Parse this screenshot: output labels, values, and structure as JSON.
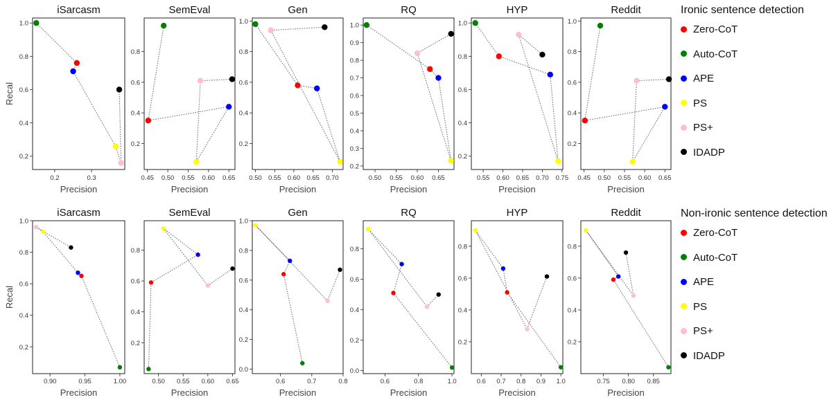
{
  "chart_data": {
    "type": "scatter",
    "series_order": [
      "Zero-CoT",
      "Auto-CoT",
      "APE",
      "PS",
      "PS+",
      "IDADP"
    ],
    "colors": {
      "Zero-CoT": "#ff0000",
      "Auto-CoT": "#008000",
      "APE": "#0000ff",
      "PS": "#ffff00",
      "PS+": "#ffc0cb",
      "IDADP": "#000000"
    },
    "xlabel": "Precision",
    "ylabel": "Recal",
    "groups": [
      {
        "legend_title": "Ironic sentence detection",
        "point_size": "large",
        "panels": [
          {
            "title": "iSarcasm",
            "xlim": [
              0.14,
              0.39
            ],
            "ylim": [
              0.12,
              1.03
            ],
            "xticks": [
              0.2,
              0.3
            ],
            "yticks": [
              0.2,
              0.4,
              0.6,
              0.8,
              1.0
            ],
            "xtick_labels": [
              "0.2",
              "0.3"
            ],
            "ytick_labels": [
              "0.2",
              "0.4",
              "0.6",
              "0.8",
              "1.0"
            ],
            "points": {
              "Zero-CoT": [
                0.26,
                0.76
              ],
              "Auto-CoT": [
                0.15,
                1.0
              ],
              "APE": [
                0.25,
                0.71
              ],
              "PS": [
                0.365,
                0.26
              ],
              "PS+": [
                0.38,
                0.16
              ],
              "IDADP": [
                0.375,
                0.6
              ]
            }
          },
          {
            "title": "SemEval",
            "xlim": [
              0.442,
              0.665
            ],
            "ylim": [
              0.03,
              1.02
            ],
            "xticks": [
              0.45,
              0.5,
              0.55,
              0.6,
              0.65
            ],
            "yticks": [
              0.2,
              0.4,
              0.6,
              0.8
            ],
            "xtick_labels": [
              "0.45",
              "0.50",
              "0.55",
              "0.60",
              "0.65"
            ],
            "ytick_labels": [
              "0.2",
              "0.4",
              "0.6",
              "0.8"
            ],
            "points": {
              "Zero-CoT": [
                0.452,
                0.35
              ],
              "Auto-CoT": [
                0.49,
                0.97
              ],
              "APE": [
                0.65,
                0.44
              ],
              "PS": [
                0.57,
                0.08
              ],
              "PS+": [
                0.58,
                0.61
              ],
              "IDADP": [
                0.658,
                0.62
              ]
            }
          },
          {
            "title": "Gen",
            "xlim": [
              0.492,
              0.728
            ],
            "ylim": [
              0.03,
              1.02
            ],
            "xticks": [
              0.5,
              0.55,
              0.6,
              0.65,
              0.7
            ],
            "yticks": [
              0.2,
              0.4,
              0.6,
              0.8,
              1.0
            ],
            "xtick_labels": [
              "0.50",
              "0.55",
              "0.60",
              "0.65",
              "0.70"
            ],
            "ytick_labels": [
              "0.2",
              "0.4",
              "0.6",
              "0.8",
              "1.0"
            ],
            "points": {
              "Zero-CoT": [
                0.61,
                0.58
              ],
              "Auto-CoT": [
                0.5,
                0.98
              ],
              "APE": [
                0.66,
                0.56
              ],
              "PS": [
                0.72,
                0.08
              ],
              "PS+": [
                0.54,
                0.94
              ],
              "IDADP": [
                0.68,
                0.96
              ]
            }
          },
          {
            "title": "RQ",
            "xlim": [
              0.472,
              0.687
            ],
            "ylim": [
              0.18,
              1.04
            ],
            "xticks": [
              0.5,
              0.55,
              0.6,
              0.65
            ],
            "yticks": [
              0.2,
              0.3,
              0.4,
              0.5,
              0.6,
              0.7,
              0.8,
              0.9,
              1.0
            ],
            "xtick_labels": [
              "0.50",
              "0.55",
              "0.60",
              "0.65"
            ],
            "ytick_labels": [
              "0.2",
              "0.3",
              "0.4",
              "0.5",
              "0.6",
              "0.7",
              "0.8",
              "0.9",
              "1.0"
            ],
            "points": {
              "Zero-CoT": [
                0.63,
                0.75
              ],
              "Auto-CoT": [
                0.48,
                1.0
              ],
              "APE": [
                0.65,
                0.7
              ],
              "PS": [
                0.68,
                0.23
              ],
              "PS+": [
                0.6,
                0.84
              ],
              "IDADP": [
                0.68,
                0.95
              ]
            }
          },
          {
            "title": "HYP",
            "xlim": [
              0.52,
              0.752
            ],
            "ylim": [
              0.12,
              1.03
            ],
            "xticks": [
              0.55,
              0.6,
              0.65,
              0.7,
              0.75
            ],
            "yticks": [
              0.2,
              0.4,
              0.6,
              0.8,
              1.0
            ],
            "xtick_labels": [
              "0.55",
              "0.60",
              "0.65",
              "0.70",
              "0.75"
            ],
            "ytick_labels": [
              "0.2",
              "0.4",
              "0.6",
              "0.8",
              "1.0"
            ],
            "points": {
              "Zero-CoT": [
                0.59,
                0.8
              ],
              "Auto-CoT": [
                0.53,
                1.0
              ],
              "APE": [
                0.72,
                0.69
              ],
              "PS": [
                0.74,
                0.17
              ],
              "PS+": [
                0.64,
                0.93
              ],
              "IDADP": [
                0.7,
                0.81
              ]
            }
          },
          {
            "title": "Reddit",
            "xlim": [
              0.442,
              0.665
            ],
            "ylim": [
              0.03,
              1.02
            ],
            "xticks": [
              0.45,
              0.5,
              0.55,
              0.6,
              0.65
            ],
            "yticks": [
              0.2,
              0.4,
              0.6,
              0.8,
              1.0
            ],
            "xtick_labels": [
              "0.45",
              "0.50",
              "0.55",
              "0.60",
              "0.65"
            ],
            "ytick_labels": [
              "0.2",
              "0.4",
              "0.6",
              "0.8",
              "1.0"
            ],
            "points": {
              "Zero-CoT": [
                0.452,
                0.35
              ],
              "Auto-CoT": [
                0.49,
                0.97
              ],
              "APE": [
                0.65,
                0.44
              ],
              "PS": [
                0.57,
                0.08
              ],
              "PS+": [
                0.58,
                0.61
              ],
              "IDADP": [
                0.66,
                0.62
              ]
            }
          }
        ]
      },
      {
        "legend_title": "Non-ironic sentence detection",
        "point_size": "small",
        "panels": [
          {
            "title": "iSarcasm",
            "xlim": [
              0.875,
              1.007
            ],
            "ylim": [
              0.03,
              1.0
            ],
            "xticks": [
              0.9,
              0.95,
              1.0
            ],
            "yticks": [
              0.2,
              0.4,
              0.6,
              0.8,
              1.0
            ],
            "xtick_labels": [
              "0.90",
              "0.95",
              "1.00"
            ],
            "ytick_labels": [
              "0.2",
              "0.4",
              "0.6",
              "0.8",
              "1.0"
            ],
            "points": {
              "Zero-CoT": [
                0.945,
                0.65
              ],
              "Auto-CoT": [
                1.0,
                0.07
              ],
              "APE": [
                0.94,
                0.67
              ],
              "PS": [
                0.89,
                0.93
              ],
              "PS+": [
                0.88,
                0.96
              ],
              "IDADP": [
                0.93,
                0.83
              ]
            }
          },
          {
            "title": "SemEval",
            "xlim": [
              0.471,
              0.655
            ],
            "ylim": [
              0.0,
              0.99
            ],
            "xticks": [
              0.5,
              0.55,
              0.6,
              0.65
            ],
            "yticks": [
              0.2,
              0.4,
              0.6,
              0.8
            ],
            "xtick_labels": [
              "0.50",
              "0.55",
              "0.60",
              "0.65"
            ],
            "ytick_labels": [
              "0.2",
              "0.4",
              "0.6",
              "0.8"
            ],
            "points": {
              "Zero-CoT": [
                0.485,
                0.59
              ],
              "Auto-CoT": [
                0.48,
                0.03
              ],
              "APE": [
                0.58,
                0.77
              ],
              "PS": [
                0.51,
                0.94
              ],
              "PS+": [
                0.6,
                0.57
              ],
              "IDADP": [
                0.65,
                0.68
              ]
            }
          },
          {
            "title": "Gen",
            "xlim": [
              0.51,
              0.8
            ],
            "ylim": [
              -0.03,
              1.0
            ],
            "xticks": [
              0.6,
              0.7,
              0.8
            ],
            "yticks": [
              0.0,
              0.2,
              0.4,
              0.6,
              0.8,
              1.0
            ],
            "xtick_labels": [
              "0.6",
              "0.7",
              "0.8"
            ],
            "ytick_labels": [
              "0.0",
              "0.2",
              "0.4",
              "0.6",
              "0.8",
              "1.0"
            ],
            "points": {
              "Zero-CoT": [
                0.61,
                0.64
              ],
              "Auto-CoT": [
                0.67,
                0.04
              ],
              "APE": [
                0.63,
                0.73
              ],
              "PS": [
                0.52,
                0.97
              ],
              "PS+": [
                0.75,
                0.46
              ],
              "IDADP": [
                0.79,
                0.67
              ]
            }
          },
          {
            "title": "RQ",
            "xlim": [
              0.47,
              1.012
            ],
            "ylim": [
              -0.02,
              0.985
            ],
            "xticks": [
              0.6,
              0.8,
              1.0
            ],
            "yticks": [
              0.0,
              0.2,
              0.4,
              0.6,
              0.8
            ],
            "xtick_labels": [
              "0.6",
              "0.8",
              "1.0"
            ],
            "ytick_labels": [
              "0.0",
              "0.2",
              "0.4",
              "0.6",
              "0.8"
            ],
            "points": {
              "Zero-CoT": [
                0.65,
                0.51
              ],
              "Auto-CoT": [
                1.0,
                0.02
              ],
              "APE": [
                0.7,
                0.7
              ],
              "PS": [
                0.5,
                0.93
              ],
              "PS+": [
                0.85,
                0.42
              ],
              "IDADP": [
                0.92,
                0.5
              ]
            }
          },
          {
            "title": "HYP",
            "xlim": [
              0.55,
              1.01
            ],
            "ylim": [
              0.0,
              0.96
            ],
            "xticks": [
              0.6,
              0.7,
              0.8,
              0.9,
              1.0
            ],
            "yticks": [
              0.2,
              0.4,
              0.6,
              0.8
            ],
            "xtick_labels": [
              "0.6",
              "0.7",
              "0.8",
              "0.9",
              "1.0"
            ],
            "ytick_labels": [
              "0.2",
              "0.4",
              "0.6",
              "0.8"
            ],
            "points": {
              "Zero-CoT": [
                0.73,
                0.51
              ],
              "Auto-CoT": [
                1.0,
                0.04
              ],
              "APE": [
                0.71,
                0.66
              ],
              "PS": [
                0.57,
                0.9
              ],
              "PS+": [
                0.83,
                0.28
              ],
              "IDADP": [
                0.93,
                0.61
              ]
            }
          },
          {
            "title": "Reddit",
            "xlim": [
              0.705,
              0.885
            ],
            "ylim": [
              0.0,
              0.96
            ],
            "xticks": [
              0.75,
              0.8,
              0.85
            ],
            "yticks": [
              0.2,
              0.4,
              0.6,
              0.8
            ],
            "xtick_labels": [
              "0.75",
              "0.80",
              "0.85"
            ],
            "ytick_labels": [
              "0.2",
              "0.4",
              "0.6",
              "0.8"
            ],
            "points": {
              "Zero-CoT": [
                0.77,
                0.59
              ],
              "Auto-CoT": [
                0.88,
                0.04
              ],
              "APE": [
                0.78,
                0.61
              ],
              "PS": [
                0.715,
                0.9
              ],
              "PS+": [
                0.81,
                0.49
              ],
              "IDADP": [
                0.795,
                0.76
              ]
            }
          }
        ]
      }
    ]
  }
}
